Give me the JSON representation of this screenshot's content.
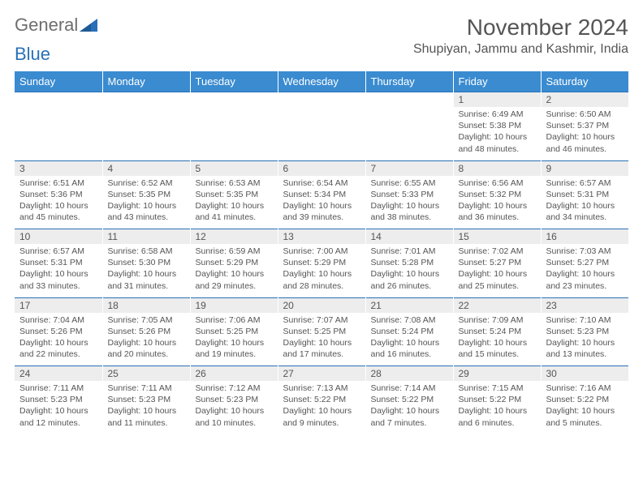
{
  "logo": {
    "text1": "General",
    "text2": "Blue"
  },
  "title": "November 2024",
  "location": "Shupiyan, Jammu and Kashmir, India",
  "colors": {
    "header_bg": "#3a8bd0",
    "header_text": "#ffffff",
    "daynum_bg": "#ededed",
    "accent_border": "#2a70b8",
    "body_text": "#555555",
    "logo_gray": "#6e6e6e",
    "logo_blue": "#2a70b8",
    "page_bg": "#ffffff"
  },
  "day_headers": [
    "Sunday",
    "Monday",
    "Tuesday",
    "Wednesday",
    "Thursday",
    "Friday",
    "Saturday"
  ],
  "weeks": [
    {
      "nums": [
        "",
        "",
        "",
        "",
        "",
        "1",
        "2"
      ],
      "cells": [
        null,
        null,
        null,
        null,
        null,
        {
          "sunrise": "6:49 AM",
          "sunset": "5:38 PM",
          "daylight": "10 hours and 48 minutes."
        },
        {
          "sunrise": "6:50 AM",
          "sunset": "5:37 PM",
          "daylight": "10 hours and 46 minutes."
        }
      ]
    },
    {
      "nums": [
        "3",
        "4",
        "5",
        "6",
        "7",
        "8",
        "9"
      ],
      "cells": [
        {
          "sunrise": "6:51 AM",
          "sunset": "5:36 PM",
          "daylight": "10 hours and 45 minutes."
        },
        {
          "sunrise": "6:52 AM",
          "sunset": "5:35 PM",
          "daylight": "10 hours and 43 minutes."
        },
        {
          "sunrise": "6:53 AM",
          "sunset": "5:35 PM",
          "daylight": "10 hours and 41 minutes."
        },
        {
          "sunrise": "6:54 AM",
          "sunset": "5:34 PM",
          "daylight": "10 hours and 39 minutes."
        },
        {
          "sunrise": "6:55 AM",
          "sunset": "5:33 PM",
          "daylight": "10 hours and 38 minutes."
        },
        {
          "sunrise": "6:56 AM",
          "sunset": "5:32 PM",
          "daylight": "10 hours and 36 minutes."
        },
        {
          "sunrise": "6:57 AM",
          "sunset": "5:31 PM",
          "daylight": "10 hours and 34 minutes."
        }
      ]
    },
    {
      "nums": [
        "10",
        "11",
        "12",
        "13",
        "14",
        "15",
        "16"
      ],
      "cells": [
        {
          "sunrise": "6:57 AM",
          "sunset": "5:31 PM",
          "daylight": "10 hours and 33 minutes."
        },
        {
          "sunrise": "6:58 AM",
          "sunset": "5:30 PM",
          "daylight": "10 hours and 31 minutes."
        },
        {
          "sunrise": "6:59 AM",
          "sunset": "5:29 PM",
          "daylight": "10 hours and 29 minutes."
        },
        {
          "sunrise": "7:00 AM",
          "sunset": "5:29 PM",
          "daylight": "10 hours and 28 minutes."
        },
        {
          "sunrise": "7:01 AM",
          "sunset": "5:28 PM",
          "daylight": "10 hours and 26 minutes."
        },
        {
          "sunrise": "7:02 AM",
          "sunset": "5:27 PM",
          "daylight": "10 hours and 25 minutes."
        },
        {
          "sunrise": "7:03 AM",
          "sunset": "5:27 PM",
          "daylight": "10 hours and 23 minutes."
        }
      ]
    },
    {
      "nums": [
        "17",
        "18",
        "19",
        "20",
        "21",
        "22",
        "23"
      ],
      "cells": [
        {
          "sunrise": "7:04 AM",
          "sunset": "5:26 PM",
          "daylight": "10 hours and 22 minutes."
        },
        {
          "sunrise": "7:05 AM",
          "sunset": "5:26 PM",
          "daylight": "10 hours and 20 minutes."
        },
        {
          "sunrise": "7:06 AM",
          "sunset": "5:25 PM",
          "daylight": "10 hours and 19 minutes."
        },
        {
          "sunrise": "7:07 AM",
          "sunset": "5:25 PM",
          "daylight": "10 hours and 17 minutes."
        },
        {
          "sunrise": "7:08 AM",
          "sunset": "5:24 PM",
          "daylight": "10 hours and 16 minutes."
        },
        {
          "sunrise": "7:09 AM",
          "sunset": "5:24 PM",
          "daylight": "10 hours and 15 minutes."
        },
        {
          "sunrise": "7:10 AM",
          "sunset": "5:23 PM",
          "daylight": "10 hours and 13 minutes."
        }
      ]
    },
    {
      "nums": [
        "24",
        "25",
        "26",
        "27",
        "28",
        "29",
        "30"
      ],
      "cells": [
        {
          "sunrise": "7:11 AM",
          "sunset": "5:23 PM",
          "daylight": "10 hours and 12 minutes."
        },
        {
          "sunrise": "7:11 AM",
          "sunset": "5:23 PM",
          "daylight": "10 hours and 11 minutes."
        },
        {
          "sunrise": "7:12 AM",
          "sunset": "5:23 PM",
          "daylight": "10 hours and 10 minutes."
        },
        {
          "sunrise": "7:13 AM",
          "sunset": "5:22 PM",
          "daylight": "10 hours and 9 minutes."
        },
        {
          "sunrise": "7:14 AM",
          "sunset": "5:22 PM",
          "daylight": "10 hours and 7 minutes."
        },
        {
          "sunrise": "7:15 AM",
          "sunset": "5:22 PM",
          "daylight": "10 hours and 6 minutes."
        },
        {
          "sunrise": "7:16 AM",
          "sunset": "5:22 PM",
          "daylight": "10 hours and 5 minutes."
        }
      ]
    }
  ],
  "labels": {
    "sunrise": "Sunrise:",
    "sunset": "Sunset:",
    "daylight": "Daylight:"
  }
}
